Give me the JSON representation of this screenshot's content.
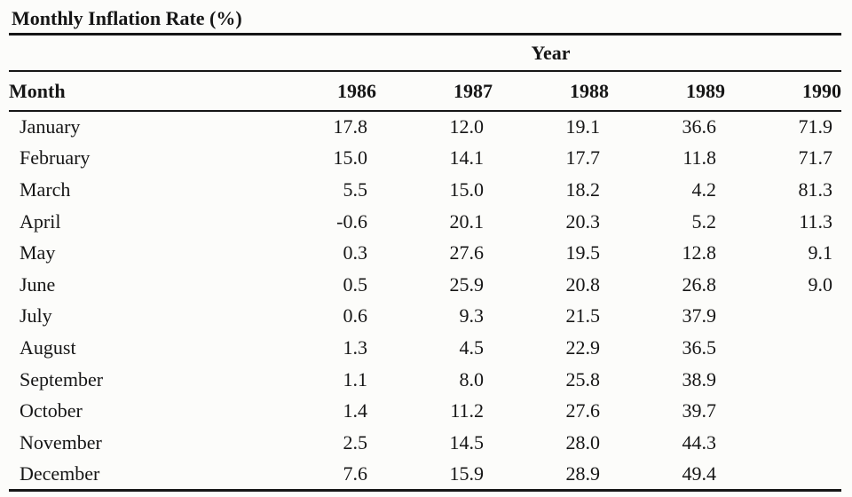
{
  "page": {
    "background": "#fcfcfa",
    "text_color": "#161616",
    "rule_color": "#161616"
  },
  "chart_data": {
    "type": "table",
    "title": "Monthly Inflation Rate (%)",
    "column_group_label": "Year",
    "row_header_label": "Month",
    "columns": [
      "1986",
      "1987",
      "1988",
      "1989",
      "1990"
    ],
    "rows": [
      {
        "month": "January",
        "values": [
          "17.8",
          "12.0",
          "19.1",
          "36.6",
          "71.9"
        ]
      },
      {
        "month": "February",
        "values": [
          "15.0",
          "14.1",
          "17.7",
          "11.8",
          "71.7"
        ]
      },
      {
        "month": "March",
        "values": [
          "5.5",
          "15.0",
          "18.2",
          "4.2",
          "81.3"
        ]
      },
      {
        "month": "April",
        "values": [
          "-0.6",
          "20.1",
          "20.3",
          "5.2",
          "11.3"
        ]
      },
      {
        "month": "May",
        "values": [
          "0.3",
          "27.6",
          "19.5",
          "12.8",
          "9.1"
        ]
      },
      {
        "month": "June",
        "values": [
          "0.5",
          "25.9",
          "20.8",
          "26.8",
          "9.0"
        ]
      },
      {
        "month": "July",
        "values": [
          "0.6",
          "9.3",
          "21.5",
          "37.9",
          ""
        ]
      },
      {
        "month": "August",
        "values": [
          "1.3",
          "4.5",
          "22.9",
          "36.5",
          ""
        ]
      },
      {
        "month": "September",
        "values": [
          "1.1",
          "8.0",
          "25.8",
          "38.9",
          ""
        ]
      },
      {
        "month": "October",
        "values": [
          "1.4",
          "11.2",
          "27.6",
          "39.7",
          ""
        ]
      },
      {
        "month": "November",
        "values": [
          "2.5",
          "14.5",
          "28.0",
          "44.3",
          ""
        ]
      },
      {
        "month": "December",
        "values": [
          "7.6",
          "15.9",
          "28.9",
          "49.4",
          ""
        ]
      }
    ]
  }
}
